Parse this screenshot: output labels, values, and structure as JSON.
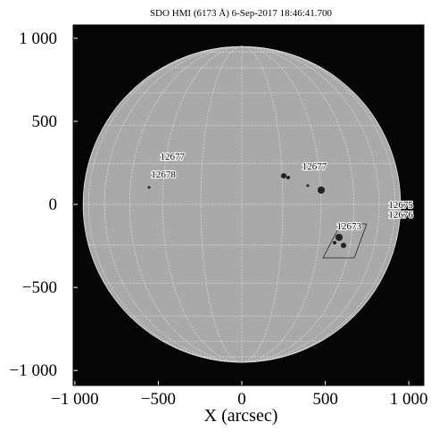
{
  "chart_data": {
    "type": "map",
    "title": "SDO HMI (6173 Å) 6-Sep-2017 18:46:41.700",
    "xlabel": "X (arcsec)",
    "xlim": [
      -1010,
      1090
    ],
    "ylim": [
      -1090,
      1080
    ],
    "xticks": [
      {
        "value": -1000,
        "label": "−1 000"
      },
      {
        "value": -500,
        "label": "−500"
      },
      0,
      500,
      {
        "value": 1000,
        "label": "1 000"
      }
    ],
    "yticks": [
      {
        "value": -1000,
        "label": "−1 000"
      },
      {
        "value": -500,
        "label": "−500"
      },
      0,
      500,
      {
        "value": 1000,
        "label": "1 000"
      }
    ],
    "solar_radius": 950,
    "annotations": [
      {
        "text": "12677",
        "x": -489,
        "y": 269
      },
      {
        "text": "12678",
        "x": -543,
        "y": 161
      },
      {
        "text": "12677",
        "x": 362,
        "y": 210
      },
      {
        "text": "12673",
        "x": 569,
        "y": -150
      },
      {
        "text": "12675",
        "x": 878,
        "y": -22
      },
      {
        "text": "12676",
        "x": 878,
        "y": -81
      }
    ]
  }
}
